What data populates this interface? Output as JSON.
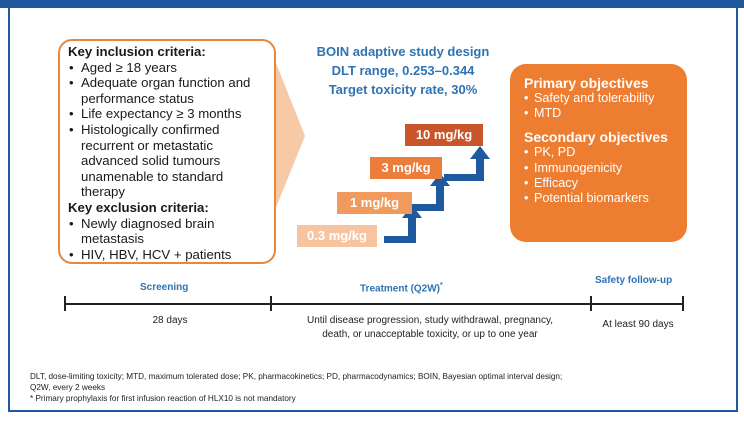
{
  "inclusion": {
    "heading": "Key inclusion criteria:",
    "items": [
      "Aged ≥ 18 years",
      "Adequate organ function and performance status",
      "Life expectancy ≥ 3 months",
      "Histologically confirmed recurrent or metastatic advanced solid tumours unamenable to standard therapy"
    ]
  },
  "exclusion": {
    "heading": "Key exclusion criteria:",
    "items": [
      "Newly diagnosed brain metastasis",
      "HIV, HBV, HCV + patients"
    ]
  },
  "design": {
    "title": "BOIN adaptive study design",
    "dlt_range": "DLT range, 0.253–0.344",
    "target_rate": "Target toxicity rate, 30%"
  },
  "doses": [
    "0.3 mg/kg",
    "1 mg/kg",
    "3 mg/kg",
    "10 mg/kg"
  ],
  "objectives": {
    "primary_heading": "Primary objectives",
    "primary": [
      "Safety and tolerability",
      "MTD"
    ],
    "secondary_heading": "Secondary objectives",
    "secondary": [
      "PK, PD",
      "Immunogenicity",
      "Efficacy",
      "Potential biomarkers"
    ]
  },
  "timeline": {
    "screening": "Screening",
    "treatment": "Treatment (Q2W)",
    "treatment_mark": "*",
    "followup": "Safety follow-up",
    "screening_dur": "28 days",
    "treatment_dur_1": "Until disease progression, study withdrawal, pregnancy,",
    "treatment_dur_2": "death, or unacceptable toxicity, or up to one year",
    "followup_dur": "At least 90 days"
  },
  "footnotes": {
    "abbrev_1": "DLT, dose-limiting toxicity;  MTD, maximum tolerated dose; PK, pharmacokinetics; PD, pharmacodynamics; BOIN, Bayesian optimal interval design;",
    "abbrev_2": "Q2W, every 2 weeks",
    "star": "* Primary prophylaxis for first infusion reaction of HLX10 is not mandatory"
  },
  "colors": {
    "accent_blue": "#1f5a9e",
    "title_blue": "#2e74b5",
    "orange": "#ed7d31"
  }
}
